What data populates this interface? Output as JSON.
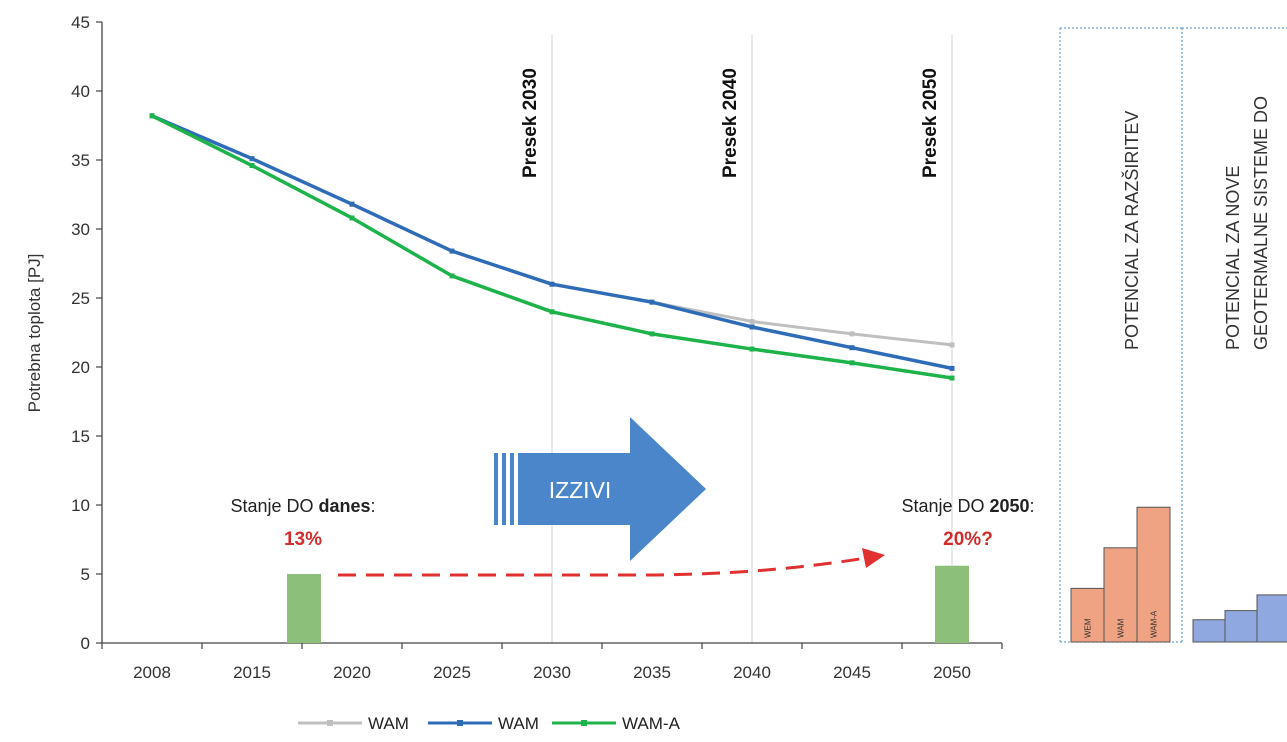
{
  "chart_data": {
    "type": "line",
    "ylabel": "Potrebna toplota  [PJ]",
    "ylim": [
      0,
      45
    ],
    "y_ticks": [
      0,
      5,
      10,
      15,
      20,
      25,
      30,
      35,
      40,
      45
    ],
    "x": [
      "2008",
      "2015",
      "2020",
      "2025",
      "2030",
      "2035",
      "2040",
      "2045",
      "2050"
    ],
    "series": [
      {
        "name": "WAM",
        "color": "#bfbfbf",
        "values": [
          38.2,
          35.1,
          31.8,
          28.4,
          26.0,
          24.7,
          23.3,
          22.4,
          21.6
        ]
      },
      {
        "name": "WAM",
        "color": "#2e6cb8",
        "values": [
          38.2,
          35.1,
          31.8,
          28.4,
          26.0,
          24.7,
          22.9,
          21.4,
          19.9
        ]
      },
      {
        "name": "WAM-A",
        "color": "#1db34a",
        "values": [
          38.2,
          34.6,
          30.8,
          26.6,
          24.0,
          22.4,
          21.3,
          20.3,
          19.2
        ]
      }
    ],
    "bars": [
      {
        "x_position": 2017.6,
        "value": 5.0,
        "color": "#8cc07a"
      },
      {
        "x_position": 2050,
        "value": 5.6,
        "color": "#8cc07a"
      }
    ],
    "vertical_lines": [
      {
        "x": 2030,
        "label": "Presek 2030"
      },
      {
        "x": 2040,
        "label": "Presek 2040"
      },
      {
        "x": 2050,
        "label": "Presek 2050"
      }
    ],
    "annotations": {
      "stanje_danes": {
        "prefix": "Stanje DO ",
        "bold": "danes",
        "suffix": ":",
        "pct": "13%"
      },
      "stanje_2050": {
        "prefix": "Stanje DO ",
        "bold": "2050",
        "suffix": ":",
        "pct": "20%?"
      },
      "arrow": "IZZIVI"
    },
    "side_panels": [
      {
        "lines": [
          "POTENCIAL ZA RAZŠIRITEV"
        ],
        "bars": [
          {
            "label": "WEM",
            "value": 4.1
          },
          {
            "label": "WAM",
            "value": 7.2
          },
          {
            "label": "WAM-A",
            "value": 10.3
          }
        ],
        "color": "#f0a383"
      },
      {
        "lines": [
          "POTENCIAL ZA NOVE",
          "GEOTERMALNE SISTEME DO"
        ],
        "bars": [
          {
            "label": "",
            "value": 1.7
          },
          {
            "label": "",
            "value": 2.4
          },
          {
            "label": "",
            "value": 3.6
          }
        ],
        "color": "#8fa9e0"
      }
    ],
    "legend": [
      "WAM",
      "WAM",
      "WAM-A"
    ],
    "legend_position": "bottom"
  }
}
